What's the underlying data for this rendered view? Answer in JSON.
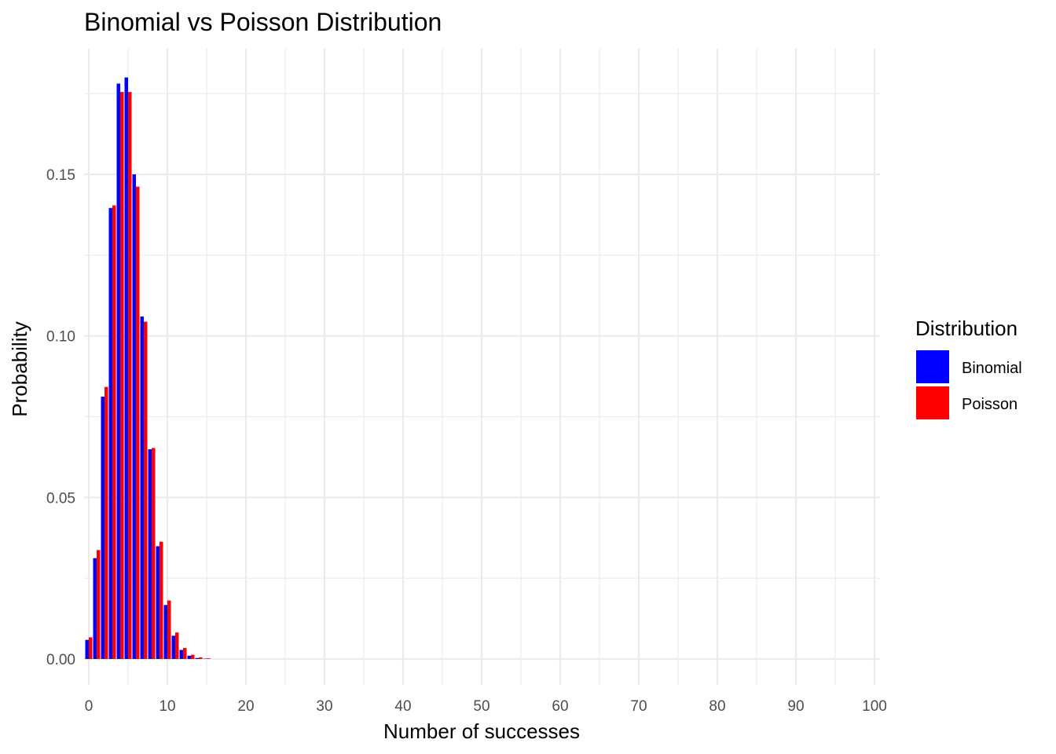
{
  "chart_data": {
    "type": "bar",
    "title": "Binomial vs Poisson Distribution",
    "xlabel": "Number of successes",
    "ylabel": "Probability",
    "xlim": [
      0,
      100
    ],
    "ylim": [
      0,
      0.18
    ],
    "x_ticks": [
      "0",
      "10",
      "20",
      "30",
      "40",
      "50",
      "60",
      "70",
      "80",
      "90",
      "100"
    ],
    "y_ticks": [
      "0.00",
      "0.05",
      "0.10",
      "0.15"
    ],
    "grid": true,
    "legend": {
      "title": "Distribution",
      "position": "right"
    },
    "x": [
      0,
      1,
      2,
      3,
      4,
      5,
      6,
      7,
      8,
      9,
      10,
      11,
      12,
      13,
      14,
      15,
      16
    ],
    "series": [
      {
        "name": "Binomial",
        "color": "#0000ff",
        "values": [
          0.0059,
          0.0312,
          0.0812,
          0.1396,
          0.1781,
          0.18,
          0.15,
          0.106,
          0.0649,
          0.0349,
          0.0167,
          0.0072,
          0.0028,
          0.001,
          0.0003,
          0.0001,
          0.0
        ]
      },
      {
        "name": "Poisson",
        "color": "#ff0000",
        "values": [
          0.0067,
          0.0337,
          0.0842,
          0.1404,
          0.1755,
          0.1755,
          0.1462,
          0.1044,
          0.0653,
          0.0363,
          0.0181,
          0.0082,
          0.0034,
          0.0013,
          0.0005,
          0.0002,
          0.0
        ]
      }
    ]
  }
}
